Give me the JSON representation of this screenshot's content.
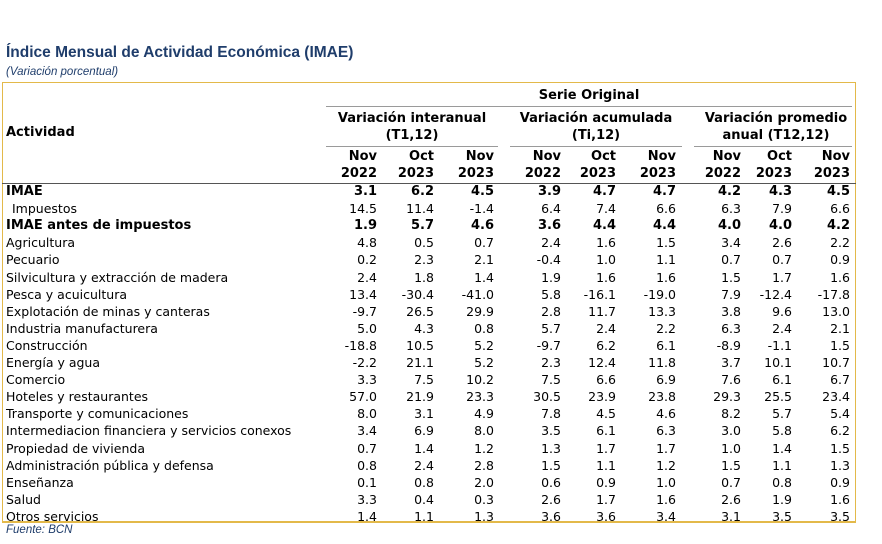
{
  "title": "Índice Mensual de Actividad Económica (IMAE)",
  "subtitle": "(Variación porcentual)",
  "header": {
    "activity_label": "Actividad",
    "serie": "Serie Original",
    "groups": [
      {
        "line1": "Variación interanual",
        "line2": "(T1,12)"
      },
      {
        "line1": "Variación acumulada",
        "line2": "(Ti,12)"
      },
      {
        "line1": "Variación promedio",
        "line2": "anual (T12,12)"
      }
    ],
    "periods": [
      {
        "month": "Nov",
        "year": "2022"
      },
      {
        "month": "Oct",
        "year": "2023"
      },
      {
        "month": "Nov",
        "year": "2023"
      }
    ]
  },
  "rows": [
    {
      "label": "IMAE",
      "bold": true,
      "indent": false,
      "values": [
        "3.1",
        "6.2",
        "4.5",
        "3.9",
        "4.7",
        "4.7",
        "4.2",
        "4.3",
        "4.5"
      ]
    },
    {
      "label": "Impuestos",
      "bold": false,
      "indent": true,
      "values": [
        "14.5",
        "11.4",
        "-1.4",
        "6.4",
        "7.4",
        "6.6",
        "6.3",
        "7.9",
        "6.6"
      ]
    },
    {
      "label": "IMAE antes de impuestos",
      "bold": true,
      "indent": false,
      "values": [
        "1.9",
        "5.7",
        "4.6",
        "3.6",
        "4.4",
        "4.4",
        "4.0",
        "4.0",
        "4.2"
      ]
    },
    {
      "label": "Agricultura",
      "bold": false,
      "indent": false,
      "values": [
        "4.8",
        "0.5",
        "0.7",
        "2.4",
        "1.6",
        "1.5",
        "3.4",
        "2.6",
        "2.2"
      ]
    },
    {
      "label": "Pecuario",
      "bold": false,
      "indent": false,
      "values": [
        "0.2",
        "2.3",
        "2.1",
        "-0.4",
        "1.0",
        "1.1",
        "0.7",
        "0.7",
        "0.9"
      ]
    },
    {
      "label": "Silvicultura y extracción de madera",
      "bold": false,
      "indent": false,
      "values": [
        "2.4",
        "1.8",
        "1.4",
        "1.9",
        "1.6",
        "1.6",
        "1.5",
        "1.7",
        "1.6"
      ]
    },
    {
      "label": "Pesca y acuicultura",
      "bold": false,
      "indent": false,
      "values": [
        "13.4",
        "-30.4",
        "-41.0",
        "5.8",
        "-16.1",
        "-19.0",
        "7.9",
        "-12.4",
        "-17.8"
      ]
    },
    {
      "label": "Explotación de minas y canteras",
      "bold": false,
      "indent": false,
      "values": [
        "-9.7",
        "26.5",
        "29.9",
        "2.8",
        "11.7",
        "13.3",
        "3.8",
        "9.6",
        "13.0"
      ]
    },
    {
      "label": "Industria manufacturera",
      "bold": false,
      "indent": false,
      "values": [
        "5.0",
        "4.3",
        "0.8",
        "5.7",
        "2.4",
        "2.2",
        "6.3",
        "2.4",
        "2.1"
      ]
    },
    {
      "label": "Construcción",
      "bold": false,
      "indent": false,
      "values": [
        "-18.8",
        "10.5",
        "5.2",
        "-9.7",
        "6.2",
        "6.1",
        "-8.9",
        "-1.1",
        "1.5"
      ]
    },
    {
      "label": "Energía y agua",
      "bold": false,
      "indent": false,
      "values": [
        "-2.2",
        "21.1",
        "5.2",
        "2.3",
        "12.4",
        "11.8",
        "3.7",
        "10.1",
        "10.7"
      ]
    },
    {
      "label": "Comercio",
      "bold": false,
      "indent": false,
      "values": [
        "3.3",
        "7.5",
        "10.2",
        "7.5",
        "6.6",
        "6.9",
        "7.6",
        "6.1",
        "6.7"
      ]
    },
    {
      "label": "Hoteles y restaurantes",
      "bold": false,
      "indent": false,
      "values": [
        "57.0",
        "21.9",
        "23.3",
        "30.5",
        "23.9",
        "23.8",
        "29.3",
        "25.5",
        "23.4"
      ]
    },
    {
      "label": "Transporte y comunicaciones",
      "bold": false,
      "indent": false,
      "values": [
        "8.0",
        "3.1",
        "4.9",
        "7.8",
        "4.5",
        "4.6",
        "8.2",
        "5.7",
        "5.4"
      ]
    },
    {
      "label": "Intermediacion financiera y servicios conexos",
      "bold": false,
      "indent": false,
      "values": [
        "3.4",
        "6.9",
        "8.0",
        "3.5",
        "6.1",
        "6.3",
        "3.0",
        "5.8",
        "6.2"
      ]
    },
    {
      "label": "Propiedad de vivienda",
      "bold": false,
      "indent": false,
      "values": [
        "0.7",
        "1.4",
        "1.2",
        "1.3",
        "1.7",
        "1.7",
        "1.0",
        "1.4",
        "1.5"
      ]
    },
    {
      "label": "Administración pública y defensa",
      "bold": false,
      "indent": false,
      "values": [
        "0.8",
        "2.4",
        "2.8",
        "1.5",
        "1.1",
        "1.2",
        "1.5",
        "1.1",
        "1.3"
      ]
    },
    {
      "label": "Enseñanza",
      "bold": false,
      "indent": false,
      "values": [
        "0.1",
        "0.8",
        "2.0",
        "0.6",
        "0.9",
        "1.0",
        "0.7",
        "0.8",
        "0.9"
      ]
    },
    {
      "label": "Salud",
      "bold": false,
      "indent": false,
      "values": [
        "3.3",
        "0.4",
        "0.3",
        "2.6",
        "1.7",
        "1.6",
        "2.6",
        "1.9",
        "1.6"
      ]
    },
    {
      "label": "Otros servicios",
      "bold": false,
      "indent": false,
      "values": [
        "1.4",
        "1.1",
        "1.3",
        "3.6",
        "3.6",
        "3.4",
        "3.1",
        "3.5",
        "3.5"
      ]
    }
  ],
  "footer": "Fuente: BCN"
}
